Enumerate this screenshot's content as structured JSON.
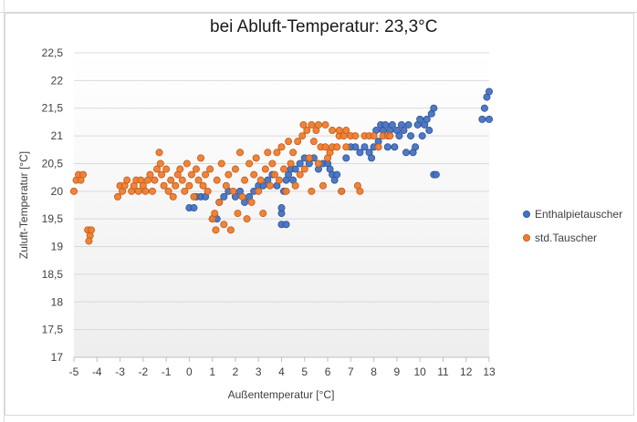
{
  "chart_data": {
    "type": "scatter",
    "title": "bei Abluft-Temperatur: 23,3°C",
    "xlabel": "Außentemperatur [°C]",
    "ylabel": "Zuluft-Temperatur [°C]",
    "xlim": [
      -5,
      13
    ],
    "ylim": [
      17,
      22.5
    ],
    "x_ticks": [
      "-5",
      "-4",
      "-3",
      "-2",
      "-1",
      "0",
      "1",
      "2",
      "3",
      "4",
      "5",
      "6",
      "7",
      "8",
      "9",
      "10",
      "11",
      "12",
      "13"
    ],
    "y_ticks": [
      "17",
      "17,5",
      "18",
      "18,5",
      "19",
      "19,5",
      "20",
      "20,5",
      "21",
      "21,5",
      "22",
      "22,5"
    ],
    "legend_position": "right",
    "series": [
      {
        "name": "Enthalpietauscher",
        "color": "#4472c4",
        "points": [
          [
            0.0,
            19.7
          ],
          [
            0.2,
            19.7
          ],
          [
            0.3,
            19.9
          ],
          [
            0.5,
            19.9
          ],
          [
            0.7,
            19.9
          ],
          [
            1.0,
            19.5
          ],
          [
            1.2,
            19.5
          ],
          [
            1.3,
            19.8
          ],
          [
            1.5,
            19.9
          ],
          [
            1.7,
            20.0
          ],
          [
            2.0,
            19.9
          ],
          [
            2.2,
            20.0
          ],
          [
            2.4,
            19.8
          ],
          [
            2.6,
            19.9
          ],
          [
            2.8,
            20.0
          ],
          [
            3.0,
            20.1
          ],
          [
            3.2,
            20.1
          ],
          [
            3.4,
            20.2
          ],
          [
            3.6,
            20.3
          ],
          [
            3.8,
            20.1
          ],
          [
            4.0,
            19.4
          ],
          [
            4.0,
            19.6
          ],
          [
            4.0,
            19.7
          ],
          [
            4.1,
            20.0
          ],
          [
            4.2,
            20.2
          ],
          [
            4.3,
            20.3
          ],
          [
            4.2,
            19.4
          ],
          [
            4.4,
            20.4
          ],
          [
            4.5,
            20.2
          ],
          [
            4.6,
            20.4
          ],
          [
            4.8,
            20.5
          ],
          [
            5.0,
            20.6
          ],
          [
            5.2,
            20.5
          ],
          [
            5.4,
            20.6
          ],
          [
            5.6,
            20.4
          ],
          [
            5.8,
            20.5
          ],
          [
            6.0,
            20.5
          ],
          [
            6.1,
            20.4
          ],
          [
            6.2,
            20.3
          ],
          [
            6.3,
            20.2
          ],
          [
            6.4,
            20.3
          ],
          [
            6.6,
            20.0
          ],
          [
            6.8,
            20.6
          ],
          [
            7.0,
            20.8
          ],
          [
            7.2,
            20.8
          ],
          [
            7.4,
            20.7
          ],
          [
            7.6,
            20.8
          ],
          [
            7.8,
            20.7
          ],
          [
            7.9,
            20.6
          ],
          [
            8.0,
            20.8
          ],
          [
            8.1,
            21.1
          ],
          [
            8.2,
            20.9
          ],
          [
            8.3,
            21.2
          ],
          [
            8.4,
            21.1
          ],
          [
            8.5,
            21.2
          ],
          [
            8.6,
            20.8
          ],
          [
            8.7,
            21.1
          ],
          [
            8.8,
            21.2
          ],
          [
            8.9,
            20.8
          ],
          [
            9.0,
            21.1
          ],
          [
            9.1,
            21.0
          ],
          [
            9.2,
            21.2
          ],
          [
            9.3,
            21.1
          ],
          [
            9.4,
            20.7
          ],
          [
            9.5,
            21.2
          ],
          [
            9.6,
            21.0
          ],
          [
            9.7,
            20.7
          ],
          [
            9.8,
            20.8
          ],
          [
            9.9,
            21.2
          ],
          [
            10.0,
            21.3
          ],
          [
            10.1,
            21.0
          ],
          [
            10.2,
            21.2
          ],
          [
            10.3,
            21.3
          ],
          [
            10.4,
            21.1
          ],
          [
            10.5,
            21.4
          ],
          [
            10.6,
            21.5
          ],
          [
            10.6,
            20.3
          ],
          [
            10.7,
            20.3
          ],
          [
            12.7,
            21.3
          ],
          [
            12.8,
            21.5
          ],
          [
            12.9,
            21.7
          ],
          [
            13.0,
            21.8
          ],
          [
            13.0,
            21.3
          ]
        ]
      },
      {
        "name": "std.Tauscher",
        "color": "#ed7d31",
        "points": [
          [
            -5.0,
            20.0
          ],
          [
            -4.9,
            20.2
          ],
          [
            -4.8,
            20.3
          ],
          [
            -4.7,
            20.2
          ],
          [
            -4.6,
            20.3
          ],
          [
            -4.4,
            19.3
          ],
          [
            -4.3,
            19.2
          ],
          [
            -4.35,
            19.1
          ],
          [
            -4.25,
            19.3
          ],
          [
            -3.1,
            19.9
          ],
          [
            -3.0,
            20.1
          ],
          [
            -2.9,
            20.0
          ],
          [
            -2.8,
            20.1
          ],
          [
            -2.7,
            20.2
          ],
          [
            -2.5,
            20.0
          ],
          [
            -2.4,
            20.1
          ],
          [
            -2.3,
            20.2
          ],
          [
            -2.2,
            20.0
          ],
          [
            -2.1,
            20.2
          ],
          [
            -2.0,
            20.1
          ],
          [
            -1.9,
            20.0
          ],
          [
            -1.8,
            20.2
          ],
          [
            -1.7,
            20.3
          ],
          [
            -1.6,
            20.0
          ],
          [
            -1.5,
            20.2
          ],
          [
            -1.4,
            20.4
          ],
          [
            -1.3,
            20.7
          ],
          [
            -1.25,
            20.5
          ],
          [
            -1.2,
            20.3
          ],
          [
            -1.1,
            20.1
          ],
          [
            -1.0,
            20.4
          ],
          [
            -0.9,
            20.0
          ],
          [
            -0.8,
            20.2
          ],
          [
            -0.7,
            19.9
          ],
          [
            -0.6,
            20.1
          ],
          [
            -0.5,
            20.3
          ],
          [
            -0.4,
            20.4
          ],
          [
            -0.3,
            20.2
          ],
          [
            -0.2,
            20.0
          ],
          [
            -0.1,
            20.5
          ],
          [
            0.0,
            20.1
          ],
          [
            0.1,
            20.3
          ],
          [
            0.2,
            19.9
          ],
          [
            0.3,
            20.4
          ],
          [
            0.4,
            20.2
          ],
          [
            0.5,
            20.6
          ],
          [
            0.6,
            20.1
          ],
          [
            0.7,
            20.3
          ],
          [
            0.8,
            20.0
          ],
          [
            0.9,
            20.4
          ],
          [
            1.0,
            19.5
          ],
          [
            1.1,
            19.6
          ],
          [
            1.15,
            19.3
          ],
          [
            1.2,
            20.2
          ],
          [
            1.3,
            19.8
          ],
          [
            1.4,
            20.5
          ],
          [
            1.5,
            19.4
          ],
          [
            1.6,
            20.1
          ],
          [
            1.7,
            20.3
          ],
          [
            1.8,
            19.3
          ],
          [
            1.9,
            20.0
          ],
          [
            2.0,
            20.4
          ],
          [
            2.1,
            19.6
          ],
          [
            2.2,
            20.7
          ],
          [
            2.3,
            19.9
          ],
          [
            2.4,
            20.2
          ],
          [
            2.5,
            19.5
          ],
          [
            2.6,
            20.5
          ],
          [
            2.7,
            19.8
          ],
          [
            2.8,
            20.3
          ],
          [
            2.9,
            20.6
          ],
          [
            3.0,
            20.0
          ],
          [
            3.1,
            20.2
          ],
          [
            3.2,
            19.6
          ],
          [
            3.3,
            20.4
          ],
          [
            3.4,
            20.7
          ],
          [
            3.5,
            20.1
          ],
          [
            3.6,
            20.5
          ],
          [
            3.7,
            20.3
          ],
          [
            3.8,
            20.7
          ],
          [
            3.9,
            20.2
          ],
          [
            4.0,
            20.8
          ],
          [
            4.1,
            20.4
          ],
          [
            4.2,
            20.0
          ],
          [
            4.3,
            20.9
          ],
          [
            4.4,
            20.5
          ],
          [
            4.5,
            20.7
          ],
          [
            4.6,
            20.1
          ],
          [
            4.7,
            20.9
          ],
          [
            4.8,
            20.3
          ],
          [
            4.9,
            21.0
          ],
          [
            5.0,
            20.4
          ],
          [
            5.1,
            21.1
          ],
          [
            5.2,
            20.6
          ],
          [
            5.3,
            20.0
          ],
          [
            5.4,
            20.9
          ],
          [
            5.5,
            21.1
          ],
          [
            5.6,
            20.5
          ],
          [
            5.7,
            20.8
          ],
          [
            5.8,
            20.1
          ],
          [
            5.9,
            20.8
          ],
          [
            6.0,
            20.6
          ],
          [
            6.1,
            20.7
          ],
          [
            6.2,
            20.8
          ],
          [
            6.4,
            20.8
          ],
          [
            6.5,
            21.0
          ],
          [
            6.6,
            20.0
          ],
          [
            6.7,
            21.0
          ],
          [
            6.8,
            20.8
          ],
          [
            7.0,
            21.0
          ],
          [
            7.2,
            21.0
          ],
          [
            7.3,
            20.1
          ],
          [
            7.4,
            20.0
          ],
          [
            7.6,
            21.0
          ],
          [
            7.8,
            21.0
          ],
          [
            8.0,
            21.0
          ],
          [
            8.2,
            20.8
          ],
          [
            8.4,
            21.0
          ],
          [
            8.6,
            21.0
          ],
          [
            8.7,
            21.0
          ],
          [
            4.95,
            21.2
          ],
          [
            5.3,
            21.2
          ],
          [
            5.6,
            21.2
          ],
          [
            5.9,
            21.2
          ],
          [
            6.2,
            21.1
          ],
          [
            6.5,
            21.1
          ],
          [
            6.8,
            21.1
          ]
        ]
      }
    ]
  }
}
